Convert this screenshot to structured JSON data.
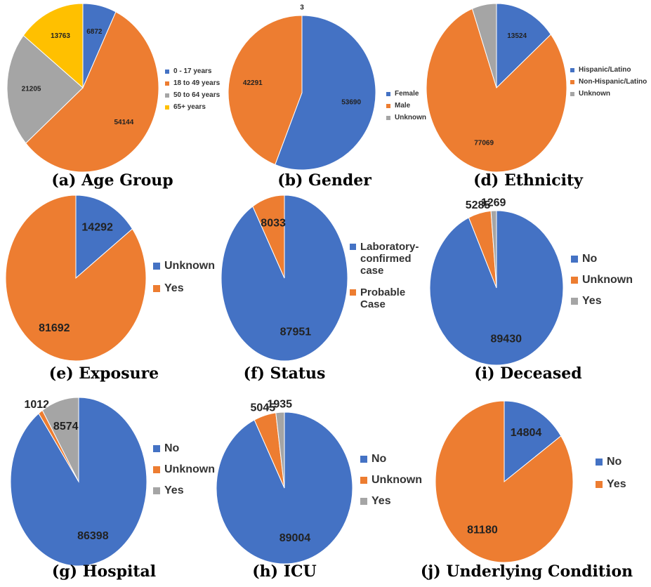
{
  "chart_data": [
    {
      "type": "pie",
      "title": "(a) Age Group",
      "categories": [
        "0 - 17 years",
        "18 to 49 years",
        "50 to 64 years",
        "65+ years"
      ],
      "values": [
        6872,
        54144,
        21205,
        13763
      ],
      "colors": [
        "#4472c4",
        "#ed7d31",
        "#a5a5a5",
        "#ffc000"
      ]
    },
    {
      "type": "pie",
      "title": "(b) Gender",
      "categories": [
        "Female",
        "Male",
        "Unknown"
      ],
      "values": [
        53690,
        42291,
        3
      ],
      "colors": [
        "#4472c4",
        "#ed7d31",
        "#a5a5a5"
      ]
    },
    {
      "type": "pie",
      "title": "(d) Ethnicity",
      "categories": [
        "Hispanic/Latino",
        "Non-Hispanic/Latino",
        "Unknown"
      ],
      "values": [
        13524,
        77069,
        5391
      ],
      "colors": [
        "#4472c4",
        "#ed7d31",
        "#a5a5a5"
      ]
    },
    {
      "type": "pie",
      "title": "(e) Exposure",
      "categories": [
        "Unknown",
        "Yes"
      ],
      "values": [
        14292,
        81692
      ],
      "colors": [
        "#4472c4",
        "#ed7d31"
      ]
    },
    {
      "type": "pie",
      "title": "(f) Status",
      "categories": [
        "Laboratory-confirmed case",
        "Probable Case"
      ],
      "values": [
        87951,
        8033
      ],
      "colors": [
        "#4472c4",
        "#ed7d31"
      ]
    },
    {
      "type": "pie",
      "title": "(i) Deceased",
      "categories": [
        "No",
        "Unknown",
        "Yes"
      ],
      "values": [
        89430,
        5285,
        1269
      ],
      "colors": [
        "#4472c4",
        "#ed7d31",
        "#a5a5a5"
      ]
    },
    {
      "type": "pie",
      "title": "(g) Hospital",
      "categories": [
        "No",
        "Unknown",
        "Yes"
      ],
      "values": [
        86398,
        1012,
        8574
      ],
      "colors": [
        "#4472c4",
        "#ed7d31",
        "#a5a5a5"
      ]
    },
    {
      "type": "pie",
      "title": "(h) ICU",
      "categories": [
        "No",
        "Unknown",
        "Yes"
      ],
      "values": [
        89004,
        5045,
        1935
      ],
      "colors": [
        "#4472c4",
        "#ed7d31",
        "#a5a5a5"
      ]
    },
    {
      "type": "pie",
      "title": "(j) Underlying Condition",
      "categories": [
        "No",
        "Yes"
      ],
      "values": [
        14804,
        81180
      ],
      "colors": [
        "#4472c4",
        "#ed7d31"
      ]
    }
  ]
}
